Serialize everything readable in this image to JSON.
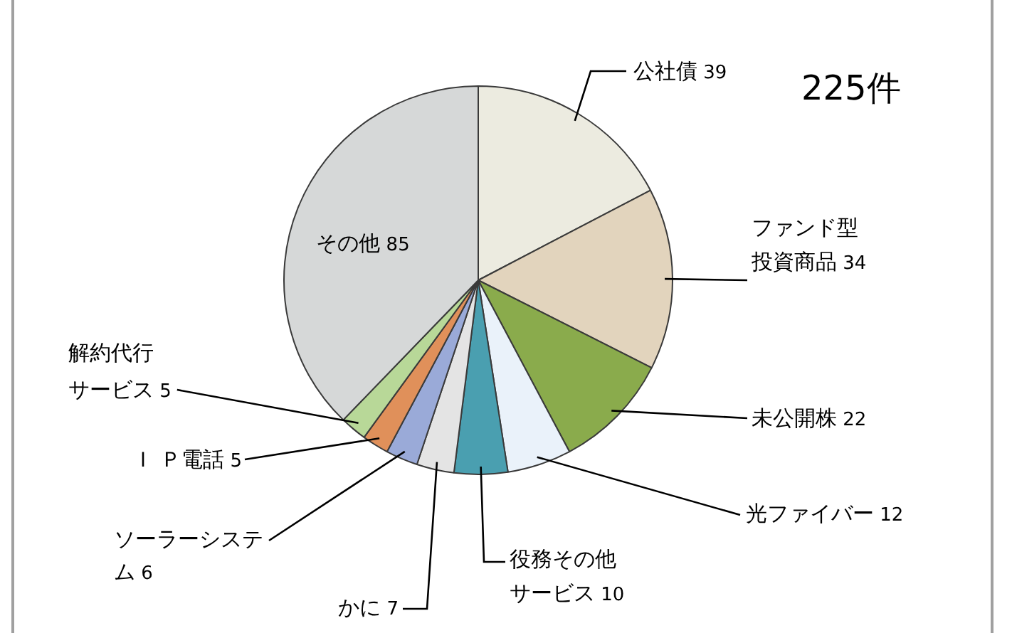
{
  "chart_data": {
    "type": "pie",
    "title": "225件",
    "categories": [
      "公社債",
      "ファンド型投資商品",
      "未公開株",
      "光ファイバー",
      "役務その他サービス",
      "かに",
      "ソーラーシステム",
      "Ｉ Ｐ電話",
      "解約代行サービス",
      "その他"
    ],
    "values": [
      39,
      34,
      22,
      12,
      10,
      7,
      6,
      5,
      5,
      85
    ],
    "colors": [
      "#ecebe0",
      "#e2d4bd",
      "#8aab4c",
      "#eaf2fa",
      "#4a9fb0",
      "#e4e4e4",
      "#9aaad8",
      "#e0905a",
      "#b8d898",
      "#d6d8d8"
    ],
    "data_labels": true,
    "legend": false
  }
}
